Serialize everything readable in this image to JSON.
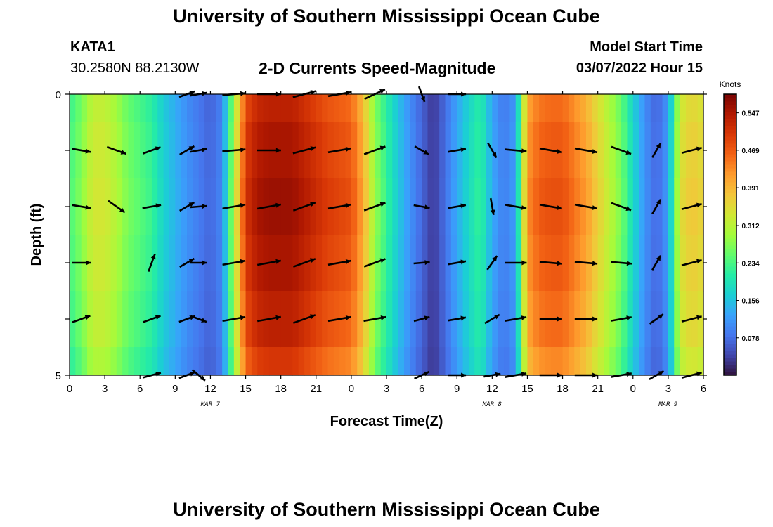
{
  "header": {
    "title": "University of Southern Mississippi Ocean Cube",
    "station": "KATA1",
    "coordinates": "30.2580N  88.2130W",
    "subtitle": "2-D Currents Speed-Magnitude",
    "model_start_label": "Model Start Time",
    "model_start_value": "03/07/2022 Hour 15"
  },
  "footer": {
    "title": "University of Southern Mississippi Ocean Cube"
  },
  "chart_data": {
    "type": "heatmap",
    "title": "2-D Currents Speed-Magnitude",
    "xlabel": "Forecast Time(Z)",
    "ylabel": "Depth (ft)",
    "xlim": [
      0,
      54
    ],
    "ylim": [
      0,
      5
    ],
    "x_ticks": [
      0,
      3,
      6,
      9,
      12,
      15,
      18,
      21,
      24,
      27,
      30,
      33,
      36,
      39,
      42,
      45,
      48,
      51,
      54
    ],
    "x_tick_labels": [
      "0",
      "3",
      "6",
      "9",
      "12",
      "15",
      "18",
      "21",
      "0",
      "3",
      "6",
      "9",
      "12",
      "15",
      "18",
      "21",
      "0",
      "3",
      "6"
    ],
    "y_tick_labels": [
      "0",
      "5"
    ],
    "date_labels": [
      {
        "x": 12,
        "label": "MAR 7"
      },
      {
        "x": 36,
        "label": "MAR 8"
      },
      {
        "x": 51,
        "label": "MAR 9"
      }
    ],
    "colorbar": {
      "title": "Knots",
      "min": 0.0,
      "max": 0.586,
      "ticks": [
        "0.078",
        "0.156",
        "0.234",
        "0.312",
        "0.391",
        "0.469",
        "0.547"
      ],
      "colors": [
        "#30123b",
        "#4145ab",
        "#4675ed",
        "#39a2fc",
        "#1bcfd4",
        "#24eca6",
        "#61fc6c",
        "#a4fc3b",
        "#d1e834",
        "#f3c63a",
        "#fe9b2d",
        "#f36315",
        "#d93806",
        "#b11901",
        "#7a0403"
      ]
    },
    "speed_profile": {
      "hours": [
        0,
        1,
        2,
        3,
        4,
        5,
        6,
        7,
        8,
        9,
        10,
        11,
        12,
        13,
        14,
        15,
        16,
        17,
        18,
        19,
        20,
        21,
        22,
        23,
        24,
        25,
        26,
        27,
        28,
        29,
        30,
        31,
        32,
        33,
        34,
        35,
        36,
        37,
        38,
        39,
        40,
        41,
        42,
        43,
        44,
        45,
        46,
        47,
        48,
        49,
        50,
        51,
        52,
        53,
        54
      ],
      "values": [
        0.23,
        0.27,
        0.33,
        0.33,
        0.3,
        0.26,
        0.24,
        0.22,
        0.17,
        0.14,
        0.11,
        0.09,
        0.07,
        0.1,
        0.3,
        0.5,
        0.54,
        0.55,
        0.55,
        0.55,
        0.53,
        0.51,
        0.49,
        0.48,
        0.47,
        0.4,
        0.28,
        0.22,
        0.16,
        0.11,
        0.07,
        0.03,
        0.08,
        0.13,
        0.18,
        0.22,
        0.13,
        0.09,
        0.12,
        0.42,
        0.46,
        0.47,
        0.47,
        0.44,
        0.41,
        0.36,
        0.31,
        0.26,
        0.18,
        0.11,
        0.07,
        0.12,
        0.34,
        0.37,
        0.35
      ]
    },
    "depth_bands": {
      "depths": [
        0,
        1,
        2,
        3,
        4,
        5
      ],
      "factors": [
        0.97,
        1.0,
        1.02,
        1.0,
        0.97,
        0.92
      ]
    },
    "vectors": {
      "times": [
        1,
        4,
        7,
        10,
        11,
        14,
        17,
        20,
        23,
        26,
        30,
        33,
        36,
        38,
        41,
        44,
        47,
        50,
        53
      ],
      "rows": [
        {
          "depth": 0,
          "speeds": [
            null,
            null,
            null,
            0.07,
            0.09,
            0.5,
            0.54,
            0.53,
            0.49,
            0.46,
            0.05,
            0.17,
            null,
            null,
            null,
            null,
            null,
            null,
            null
          ],
          "dirs": [
            null,
            null,
            null,
            70,
            80,
            85,
            90,
            75,
            80,
            65,
            160,
            90,
            null,
            null,
            null,
            null,
            null,
            null,
            null
          ]
        },
        {
          "depth": 1,
          "speeds": [
            0.23,
            0.31,
            0.22,
            0.09,
            0.09,
            0.5,
            0.54,
            0.52,
            0.49,
            0.46,
            0.05,
            0.17,
            0.1,
            0.42,
            0.46,
            0.47,
            0.36,
            0.08,
            0.35
          ],
          "dirs": [
            100,
            110,
            70,
            60,
            80,
            85,
            90,
            75,
            80,
            70,
            120,
            80,
            150,
            95,
            100,
            100,
            110,
            30,
            75
          ]
        },
        {
          "depth": 2,
          "speeds": [
            0.23,
            0.31,
            0.22,
            0.09,
            0.09,
            0.5,
            0.55,
            0.52,
            0.49,
            0.46,
            0.05,
            0.17,
            0.1,
            0.42,
            0.46,
            0.47,
            0.36,
            0.08,
            0.35
          ],
          "dirs": [
            100,
            125,
            80,
            60,
            85,
            80,
            80,
            70,
            80,
            70,
            100,
            80,
            170,
            100,
            100,
            100,
            110,
            30,
            75
          ]
        },
        {
          "depth": 3,
          "speeds": [
            0.23,
            0.31,
            0.22,
            0.09,
            0.09,
            0.5,
            0.55,
            0.52,
            0.49,
            0.46,
            0.05,
            0.17,
            0.1,
            0.42,
            0.46,
            0.47,
            0.36,
            0.08,
            0.35
          ],
          "dirs": [
            90,
            null,
            20,
            60,
            90,
            80,
            80,
            70,
            80,
            70,
            85,
            80,
            35,
            90,
            95,
            95,
            95,
            30,
            75
          ]
        },
        {
          "depth": 4,
          "speeds": [
            0.23,
            0.31,
            0.22,
            0.09,
            0.09,
            0.5,
            0.55,
            0.52,
            0.49,
            0.46,
            0.05,
            0.17,
            0.1,
            0.42,
            0.46,
            0.47,
            0.36,
            0.08,
            0.35
          ],
          "dirs": [
            70,
            null,
            70,
            70,
            110,
            80,
            80,
            70,
            80,
            80,
            75,
            80,
            60,
            80,
            90,
            90,
            80,
            55,
            75
          ]
        },
        {
          "depth": 5,
          "speeds": [
            null,
            null,
            0.22,
            0.09,
            0.09,
            null,
            null,
            null,
            null,
            null,
            0.05,
            0.17,
            0.1,
            0.42,
            0.46,
            0.47,
            0.36,
            0.08,
            0.35
          ],
          "dirs": [
            null,
            null,
            75,
            70,
            130,
            null,
            null,
            null,
            null,
            null,
            65,
            90,
            80,
            80,
            90,
            90,
            80,
            60,
            75
          ]
        }
      ]
    }
  }
}
